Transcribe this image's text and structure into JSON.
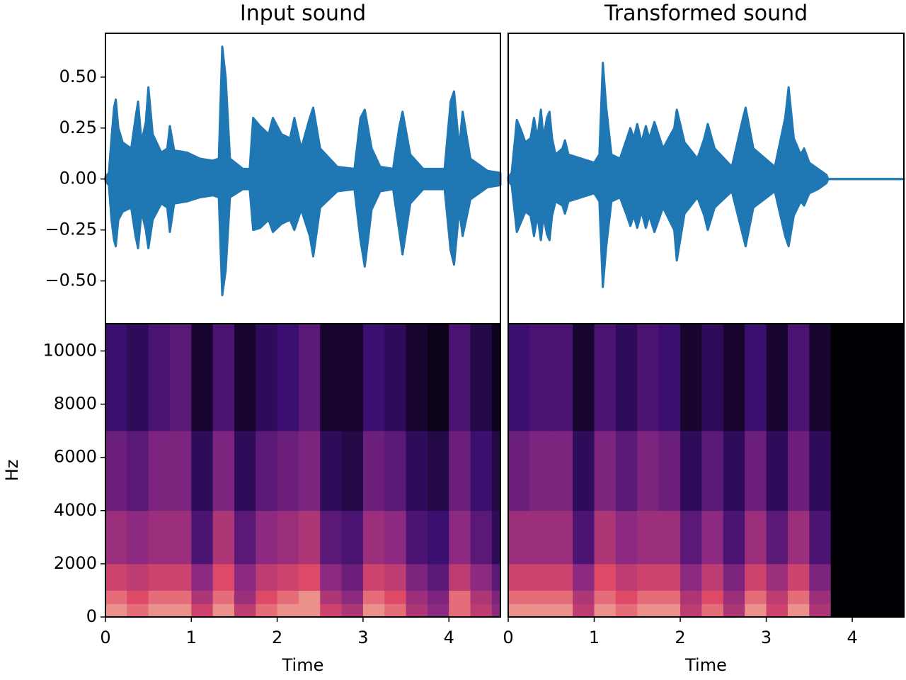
{
  "chart_data": [
    {
      "type": "waveform",
      "title": "Input sound",
      "color": "#1f77b4",
      "xlim": [
        0,
        4.6
      ],
      "ylim": [
        -0.71,
        0.715
      ],
      "yticks": [
        {
          "value": -0.5,
          "label": "−0.50"
        },
        {
          "value": -0.25,
          "label": "−0.25"
        },
        {
          "value": 0,
          "label": "0.00"
        },
        {
          "value": 0.25,
          "label": "0.25"
        },
        {
          "value": 0.5,
          "label": "0.50"
        }
      ],
      "x": [
        0,
        0.04,
        0.07,
        0.1,
        0.12,
        0.15,
        0.2,
        0.3,
        0.35,
        0.38,
        0.42,
        0.47,
        0.5,
        0.55,
        0.65,
        0.72,
        0.75,
        0.8,
        0.95,
        1.1,
        1.25,
        1.32,
        1.36,
        1.4,
        1.45,
        1.6,
        1.68,
        1.72,
        1.8,
        1.9,
        1.95,
        2.05,
        2.15,
        2.2,
        2.28,
        2.38,
        2.42,
        2.5,
        2.7,
        2.9,
        2.97,
        3.02,
        3.1,
        3.2,
        3.35,
        3.42,
        3.46,
        3.55,
        3.7,
        3.95,
        4.02,
        4.06,
        4.12,
        4.16,
        4.25,
        4.45,
        4.6
      ],
      "envelope_max": [
        0.01,
        0.03,
        0.2,
        0.35,
        0.39,
        0.25,
        0.18,
        0.15,
        0.3,
        0.38,
        0.18,
        0.28,
        0.45,
        0.22,
        0.13,
        0.15,
        0.26,
        0.14,
        0.13,
        0.1,
        0.09,
        0.1,
        0.65,
        0.5,
        0.1,
        0.05,
        0.05,
        0.3,
        0.26,
        0.22,
        0.3,
        0.22,
        0.2,
        0.3,
        0.15,
        0.3,
        0.35,
        0.15,
        0.06,
        0.05,
        0.3,
        0.34,
        0.15,
        0.06,
        0.05,
        0.25,
        0.33,
        0.12,
        0.05,
        0.05,
        0.38,
        0.43,
        0.15,
        0.33,
        0.1,
        0.04,
        0.03
      ],
      "envelope_min": [
        -0.01,
        -0.03,
        -0.2,
        -0.3,
        -0.33,
        -0.2,
        -0.16,
        -0.14,
        -0.28,
        -0.34,
        -0.16,
        -0.25,
        -0.34,
        -0.2,
        -0.12,
        -0.14,
        -0.26,
        -0.12,
        -0.11,
        -0.09,
        -0.08,
        -0.09,
        -0.57,
        -0.45,
        -0.09,
        -0.05,
        -0.05,
        -0.25,
        -0.24,
        -0.2,
        -0.26,
        -0.22,
        -0.2,
        -0.25,
        -0.15,
        -0.28,
        -0.38,
        -0.14,
        -0.06,
        -0.05,
        -0.3,
        -0.43,
        -0.15,
        -0.06,
        -0.05,
        -0.25,
        -0.37,
        -0.12,
        -0.05,
        -0.05,
        -0.35,
        -0.42,
        -0.15,
        -0.28,
        -0.1,
        -0.04,
        -0.03
      ]
    },
    {
      "type": "waveform",
      "title": "Transformed sound",
      "color": "#1f77b4",
      "xlim": [
        0,
        4.6
      ],
      "ylim": [
        -0.71,
        0.715
      ],
      "x": [
        0,
        0.04,
        0.08,
        0.1,
        0.14,
        0.2,
        0.26,
        0.3,
        0.34,
        0.38,
        0.41,
        0.45,
        0.48,
        0.51,
        0.55,
        0.63,
        0.66,
        0.7,
        0.85,
        1.0,
        1.06,
        1.1,
        1.14,
        1.2,
        1.3,
        1.38,
        1.42,
        1.46,
        1.5,
        1.55,
        1.6,
        1.64,
        1.7,
        1.8,
        1.93,
        1.96,
        2.05,
        2.2,
        2.28,
        2.32,
        2.4,
        2.6,
        2.73,
        2.76,
        2.85,
        3.1,
        3.22,
        3.26,
        3.32,
        3.4,
        3.44,
        3.5,
        3.6,
        3.7,
        3.72,
        4.6
      ],
      "envelope_max": [
        0.01,
        0.03,
        0.2,
        0.29,
        0.25,
        0.18,
        0.2,
        0.3,
        0.2,
        0.34,
        0.2,
        0.3,
        0.33,
        0.2,
        0.12,
        0.15,
        0.19,
        0.12,
        0.1,
        0.08,
        0.12,
        0.57,
        0.35,
        0.12,
        0.1,
        0.2,
        0.25,
        0.2,
        0.27,
        0.18,
        0.26,
        0.2,
        0.28,
        0.15,
        0.25,
        0.34,
        0.18,
        0.1,
        0.2,
        0.27,
        0.15,
        0.06,
        0.3,
        0.35,
        0.15,
        0.06,
        0.3,
        0.45,
        0.2,
        0.12,
        0.15,
        0.08,
        0.05,
        0.02,
        0,
        0
      ],
      "envelope_min": [
        -0.01,
        -0.03,
        -0.18,
        -0.26,
        -0.22,
        -0.16,
        -0.18,
        -0.28,
        -0.18,
        -0.3,
        -0.18,
        -0.27,
        -0.3,
        -0.18,
        -0.11,
        -0.13,
        -0.17,
        -0.11,
        -0.09,
        -0.07,
        -0.11,
        -0.53,
        -0.33,
        -0.11,
        -0.09,
        -0.18,
        -0.23,
        -0.18,
        -0.24,
        -0.16,
        -0.24,
        -0.18,
        -0.26,
        -0.14,
        -0.25,
        -0.4,
        -0.17,
        -0.09,
        -0.18,
        -0.25,
        -0.14,
        -0.06,
        -0.28,
        -0.33,
        -0.14,
        -0.06,
        -0.28,
        -0.33,
        -0.18,
        -0.11,
        -0.13,
        -0.07,
        -0.05,
        -0.02,
        0,
        0
      ]
    },
    {
      "type": "heatmap",
      "xlabel": "Time",
      "ylabel": "Hz",
      "xlim": [
        0,
        4.6
      ],
      "ylim": [
        0,
        11025
      ],
      "xticks": [
        0,
        1,
        2,
        3,
        4
      ],
      "yticks": [
        0,
        2000,
        4000,
        6000,
        8000,
        10000
      ],
      "colormap": [
        "#000004",
        "#3b0f70",
        "#8c2981",
        "#de4968",
        "#fcfdbf"
      ],
      "x_edges": [
        0,
        0.25,
        0.5,
        0.75,
        1,
        1.25,
        1.5,
        1.75,
        2,
        2.25,
        2.5,
        2.75,
        3,
        3.25,
        3.5,
        3.75,
        4,
        4.25,
        4.5,
        4.6
      ],
      "y_edges": [
        0,
        500,
        1000,
        2000,
        4000,
        7000,
        11025
      ],
      "z": [
        [
          0.85,
          0.8,
          0.85,
          0.85,
          0.7,
          0.85,
          0.65,
          0.8,
          0.85,
          0.85,
          0.7,
          0.6,
          0.85,
          0.8,
          0.6,
          0.5,
          0.8,
          0.65,
          0.5
        ],
        [
          0.8,
          0.75,
          0.8,
          0.8,
          0.6,
          0.8,
          0.55,
          0.75,
          0.8,
          0.85,
          0.6,
          0.5,
          0.8,
          0.75,
          0.55,
          0.45,
          0.8,
          0.6,
          0.45
        ],
        [
          0.7,
          0.65,
          0.7,
          0.7,
          0.5,
          0.75,
          0.5,
          0.65,
          0.7,
          0.75,
          0.5,
          0.4,
          0.7,
          0.65,
          0.45,
          0.35,
          0.65,
          0.5,
          0.35
        ],
        [
          0.55,
          0.5,
          0.55,
          0.55,
          0.3,
          0.6,
          0.35,
          0.5,
          0.55,
          0.6,
          0.35,
          0.3,
          0.55,
          0.5,
          0.3,
          0.25,
          0.5,
          0.35,
          0.2
        ],
        [
          0.4,
          0.35,
          0.45,
          0.45,
          0.2,
          0.45,
          0.2,
          0.35,
          0.4,
          0.45,
          0.2,
          0.15,
          0.4,
          0.35,
          0.2,
          0.15,
          0.4,
          0.25,
          0.15
        ],
        [
          0.25,
          0.2,
          0.3,
          0.35,
          0.1,
          0.3,
          0.1,
          0.2,
          0.25,
          0.35,
          0.1,
          0.1,
          0.25,
          0.2,
          0.1,
          0.05,
          0.3,
          0.15,
          0.05
        ]
      ]
    },
    {
      "type": "heatmap",
      "xlabel": "Time",
      "xlim": [
        0,
        4.6
      ],
      "ylim": [
        0,
        11025
      ],
      "xticks": [
        0,
        1,
        2,
        3,
        4
      ],
      "colormap": [
        "#000004",
        "#3b0f70",
        "#8c2981",
        "#de4968",
        "#fcfdbf"
      ],
      "x_edges": [
        0,
        0.25,
        0.5,
        0.75,
        1,
        1.25,
        1.5,
        1.75,
        2,
        2.25,
        2.5,
        2.75,
        3,
        3.25,
        3.5,
        3.75,
        4,
        4.25,
        4.5,
        4.6
      ],
      "y_edges": [
        0,
        500,
        1000,
        2000,
        4000,
        7000,
        11025
      ],
      "z": [
        [
          0.85,
          0.85,
          0.85,
          0.65,
          0.85,
          0.8,
          0.85,
          0.85,
          0.65,
          0.8,
          0.6,
          0.85,
          0.7,
          0.85,
          0.6,
          0,
          0,
          0,
          0
        ],
        [
          0.8,
          0.8,
          0.8,
          0.6,
          0.8,
          0.75,
          0.8,
          0.8,
          0.6,
          0.75,
          0.55,
          0.8,
          0.65,
          0.8,
          0.55,
          0,
          0,
          0,
          0
        ],
        [
          0.7,
          0.7,
          0.7,
          0.5,
          0.75,
          0.65,
          0.7,
          0.7,
          0.5,
          0.65,
          0.45,
          0.7,
          0.55,
          0.7,
          0.45,
          0,
          0,
          0,
          0
        ],
        [
          0.55,
          0.55,
          0.55,
          0.3,
          0.6,
          0.5,
          0.55,
          0.55,
          0.35,
          0.5,
          0.3,
          0.55,
          0.35,
          0.55,
          0.3,
          0,
          0,
          0,
          0
        ],
        [
          0.4,
          0.45,
          0.45,
          0.2,
          0.45,
          0.35,
          0.45,
          0.4,
          0.2,
          0.35,
          0.2,
          0.4,
          0.2,
          0.4,
          0.2,
          0,
          0,
          0,
          0
        ],
        [
          0.25,
          0.3,
          0.3,
          0.1,
          0.3,
          0.2,
          0.3,
          0.25,
          0.1,
          0.2,
          0.1,
          0.25,
          0.1,
          0.3,
          0.1,
          0,
          0,
          0,
          0
        ]
      ]
    }
  ]
}
